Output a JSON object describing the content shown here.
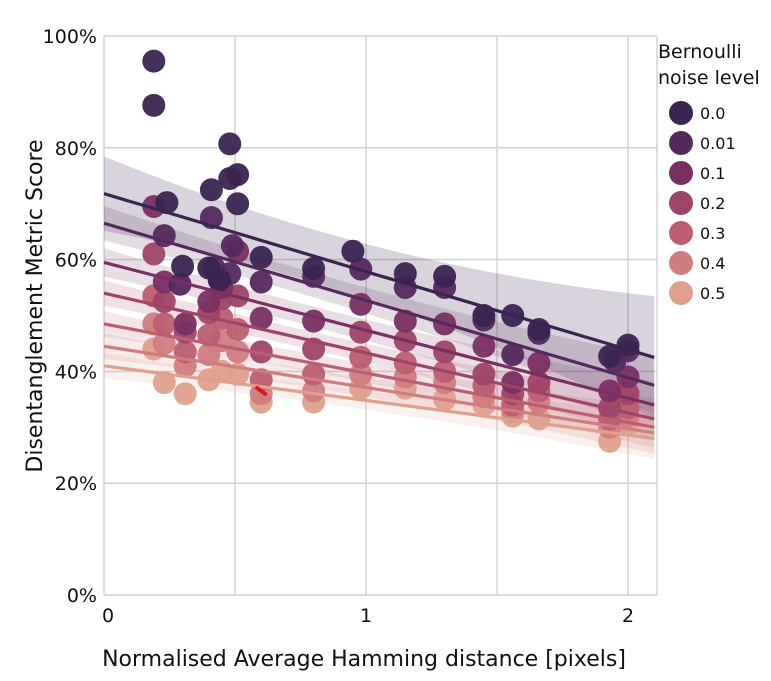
{
  "chart_data": {
    "type": "scatter",
    "xlabel": "Normalised Average Hamming distance [pixels]",
    "ylabel": "Disentanglement Metric Score",
    "xlim": [
      0,
      2.1
    ],
    "ylim": [
      0,
      100
    ],
    "x_ticks": [
      0,
      1,
      2
    ],
    "y_ticks": [
      0,
      20,
      40,
      60,
      80,
      100
    ],
    "x_tick_labels": [
      "0",
      "1",
      "2"
    ],
    "y_tick_labels": [
      "0%",
      "20%",
      "40%",
      "60%",
      "80%",
      "100%"
    ],
    "grid": true,
    "legend_position": "right",
    "legend_title": [
      "Bernoulli",
      "noise level"
    ],
    "annotation": {
      "x": 0.6,
      "y": 36.5,
      "color": "#d7191c"
    },
    "series": [
      {
        "name": "0.0",
        "color": "#3b2452",
        "fit": [
          [
            0,
            71.8
          ],
          [
            2.1,
            42.5
          ]
        ],
        "band": [
          3.5,
          4.8
        ],
        "points": [
          [
            0.19,
            95.5
          ],
          [
            0.19,
            87.6
          ],
          [
            0.24,
            70.2
          ],
          [
            0.41,
            72.5
          ],
          [
            0.48,
            80.7
          ],
          [
            0.51,
            75.2
          ],
          [
            0.48,
            74.5
          ],
          [
            0.51,
            70.0
          ],
          [
            0.3,
            58.8
          ],
          [
            0.4,
            58.5
          ],
          [
            0.44,
            56.3
          ],
          [
            0.6,
            60.4
          ],
          [
            0.8,
            58.4
          ],
          [
            0.95,
            61.5
          ],
          [
            1.15,
            57.5
          ],
          [
            1.3,
            57.0
          ],
          [
            1.45,
            50.0
          ],
          [
            1.56,
            50.0
          ],
          [
            1.66,
            47.5
          ],
          [
            1.93,
            42.7
          ],
          [
            2.0,
            44.7
          ]
        ]
      },
      {
        "name": "0.01",
        "color": "#55285e",
        "fit": [
          [
            0,
            66.5
          ],
          [
            2.1,
            37.5
          ]
        ],
        "band": [
          2.2,
          3.2
        ],
        "points": [
          [
            0.23,
            64.3
          ],
          [
            0.29,
            55.6
          ],
          [
            0.41,
            67.5
          ],
          [
            0.42,
            58.5
          ],
          [
            0.44,
            56.5
          ],
          [
            0.48,
            57.5
          ],
          [
            0.49,
            62.5
          ],
          [
            0.6,
            56.0
          ],
          [
            0.8,
            57.0
          ],
          [
            0.98,
            58.3
          ],
          [
            1.15,
            55.0
          ],
          [
            1.3,
            55.0
          ],
          [
            1.45,
            49.2
          ],
          [
            1.56,
            43.0
          ],
          [
            1.66,
            46.8
          ],
          [
            1.95,
            41.8
          ],
          [
            2.0,
            43.7
          ]
        ]
      },
      {
        "name": "0.1",
        "color": "#7a2f63",
        "fit": [
          [
            0,
            59.5
          ],
          [
            2.1,
            34.0
          ]
        ],
        "band": [
          1.8,
          2.8
        ],
        "points": [
          [
            0.19,
            69.5
          ],
          [
            0.23,
            56.0
          ],
          [
            0.31,
            48.5
          ],
          [
            0.4,
            52.5
          ],
          [
            0.45,
            55.0
          ],
          [
            0.51,
            61.5
          ],
          [
            0.6,
            49.5
          ],
          [
            0.8,
            49.0
          ],
          [
            0.98,
            52.0
          ],
          [
            1.15,
            49.0
          ],
          [
            1.3,
            48.5
          ],
          [
            1.45,
            44.5
          ],
          [
            1.56,
            38.0
          ],
          [
            1.66,
            41.5
          ],
          [
            1.93,
            36.5
          ],
          [
            2.0,
            39.0
          ]
        ]
      },
      {
        "name": "0.2",
        "color": "#9e4468",
        "fit": [
          [
            0,
            54.0
          ],
          [
            2.1,
            31.5
          ]
        ],
        "band": [
          1.6,
          2.6
        ],
        "points": [
          [
            0.19,
            61.0
          ],
          [
            0.23,
            52.5
          ],
          [
            0.31,
            47.0
          ],
          [
            0.4,
            50.5
          ],
          [
            0.45,
            53.0
          ],
          [
            0.51,
            53.5
          ],
          [
            0.6,
            43.5
          ],
          [
            0.8,
            44.0
          ],
          [
            0.98,
            47.0
          ],
          [
            1.15,
            45.5
          ],
          [
            1.3,
            43.5
          ],
          [
            1.45,
            39.5
          ],
          [
            1.56,
            36.0
          ],
          [
            1.66,
            38.0
          ],
          [
            1.93,
            33.5
          ],
          [
            2.0,
            36.0
          ]
        ]
      },
      {
        "name": "0.3",
        "color": "#bc5e72",
        "fit": [
          [
            0,
            48.5
          ],
          [
            2.1,
            30.0
          ]
        ],
        "band": [
          1.6,
          2.6
        ],
        "points": [
          [
            0.19,
            53.5
          ],
          [
            0.23,
            48.5
          ],
          [
            0.31,
            43.5
          ],
          [
            0.4,
            46.5
          ],
          [
            0.45,
            49.5
          ],
          [
            0.51,
            47.5
          ],
          [
            0.6,
            38.5
          ],
          [
            0.8,
            39.5
          ],
          [
            0.98,
            42.5
          ],
          [
            1.15,
            41.5
          ],
          [
            1.3,
            40.0
          ],
          [
            1.45,
            37.5
          ],
          [
            1.56,
            34.0
          ],
          [
            1.66,
            36.5
          ],
          [
            1.93,
            31.5
          ],
          [
            2.0,
            33.5
          ]
        ]
      },
      {
        "name": "0.4",
        "color": "#d07d7f",
        "fit": [
          [
            0,
            44.5
          ],
          [
            2.1,
            29.0
          ]
        ],
        "band": [
          1.6,
          2.6
        ],
        "points": [
          [
            0.19,
            48.5
          ],
          [
            0.23,
            45.0
          ],
          [
            0.31,
            41.0
          ],
          [
            0.4,
            43.0
          ],
          [
            0.45,
            45.5
          ],
          [
            0.51,
            43.5
          ],
          [
            0.6,
            36.0
          ],
          [
            0.8,
            36.5
          ],
          [
            0.98,
            39.5
          ],
          [
            1.15,
            39.0
          ],
          [
            1.3,
            38.0
          ],
          [
            1.45,
            35.5
          ],
          [
            1.56,
            33.0
          ],
          [
            1.66,
            34.5
          ],
          [
            1.93,
            30.0
          ],
          [
            2.0,
            32.0
          ]
        ]
      },
      {
        "name": "0.5",
        "color": "#dfa08d",
        "fit": [
          [
            0,
            41.0
          ],
          [
            2.1,
            28.0
          ]
        ],
        "band": [
          1.6,
          2.6
        ],
        "points": [
          [
            0.19,
            44.0
          ],
          [
            0.23,
            38.0
          ],
          [
            0.31,
            36.0
          ],
          [
            0.4,
            38.5
          ],
          [
            0.45,
            40.0
          ],
          [
            0.51,
            39.5
          ],
          [
            0.6,
            34.5
          ],
          [
            0.8,
            34.5
          ],
          [
            0.98,
            37.0
          ],
          [
            1.15,
            37.0
          ],
          [
            1.3,
            35.0
          ],
          [
            1.45,
            34.0
          ],
          [
            1.56,
            32.0
          ],
          [
            1.66,
            31.5
          ],
          [
            1.93,
            27.5
          ],
          [
            2.0,
            30.5
          ]
        ]
      }
    ]
  }
}
